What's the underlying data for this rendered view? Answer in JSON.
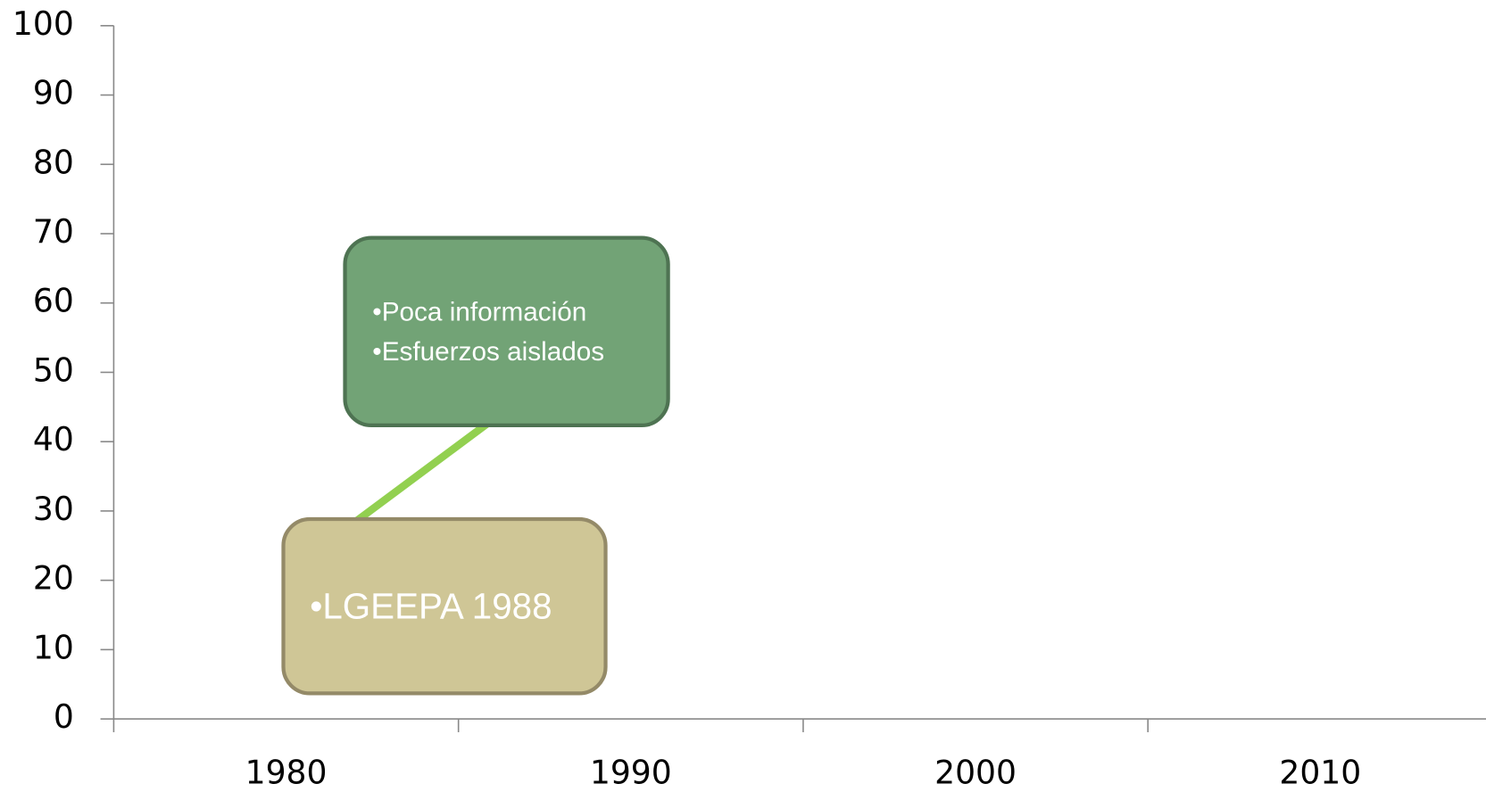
{
  "chart_data": {
    "type": "line",
    "categories": [
      "1980",
      "1990",
      "2000",
      "2010"
    ],
    "series": [
      {
        "color": "#92d050",
        "values": [
          21,
          58,
          null,
          null
        ]
      }
    ],
    "ylim": [
      0,
      100
    ],
    "yticks": [
      0,
      10,
      20,
      30,
      40,
      50,
      60,
      70,
      80,
      90,
      100
    ],
    "annotations": [
      {
        "lines": [
          "•Poca información",
          "•Esfuerzos aislados"
        ],
        "fill": "#72a376",
        "stroke": "#4e7352"
      },
      {
        "lines": [
          "•LGEEPA 1988"
        ],
        "fill": "#cfc696",
        "stroke": "#948a68"
      }
    ]
  }
}
